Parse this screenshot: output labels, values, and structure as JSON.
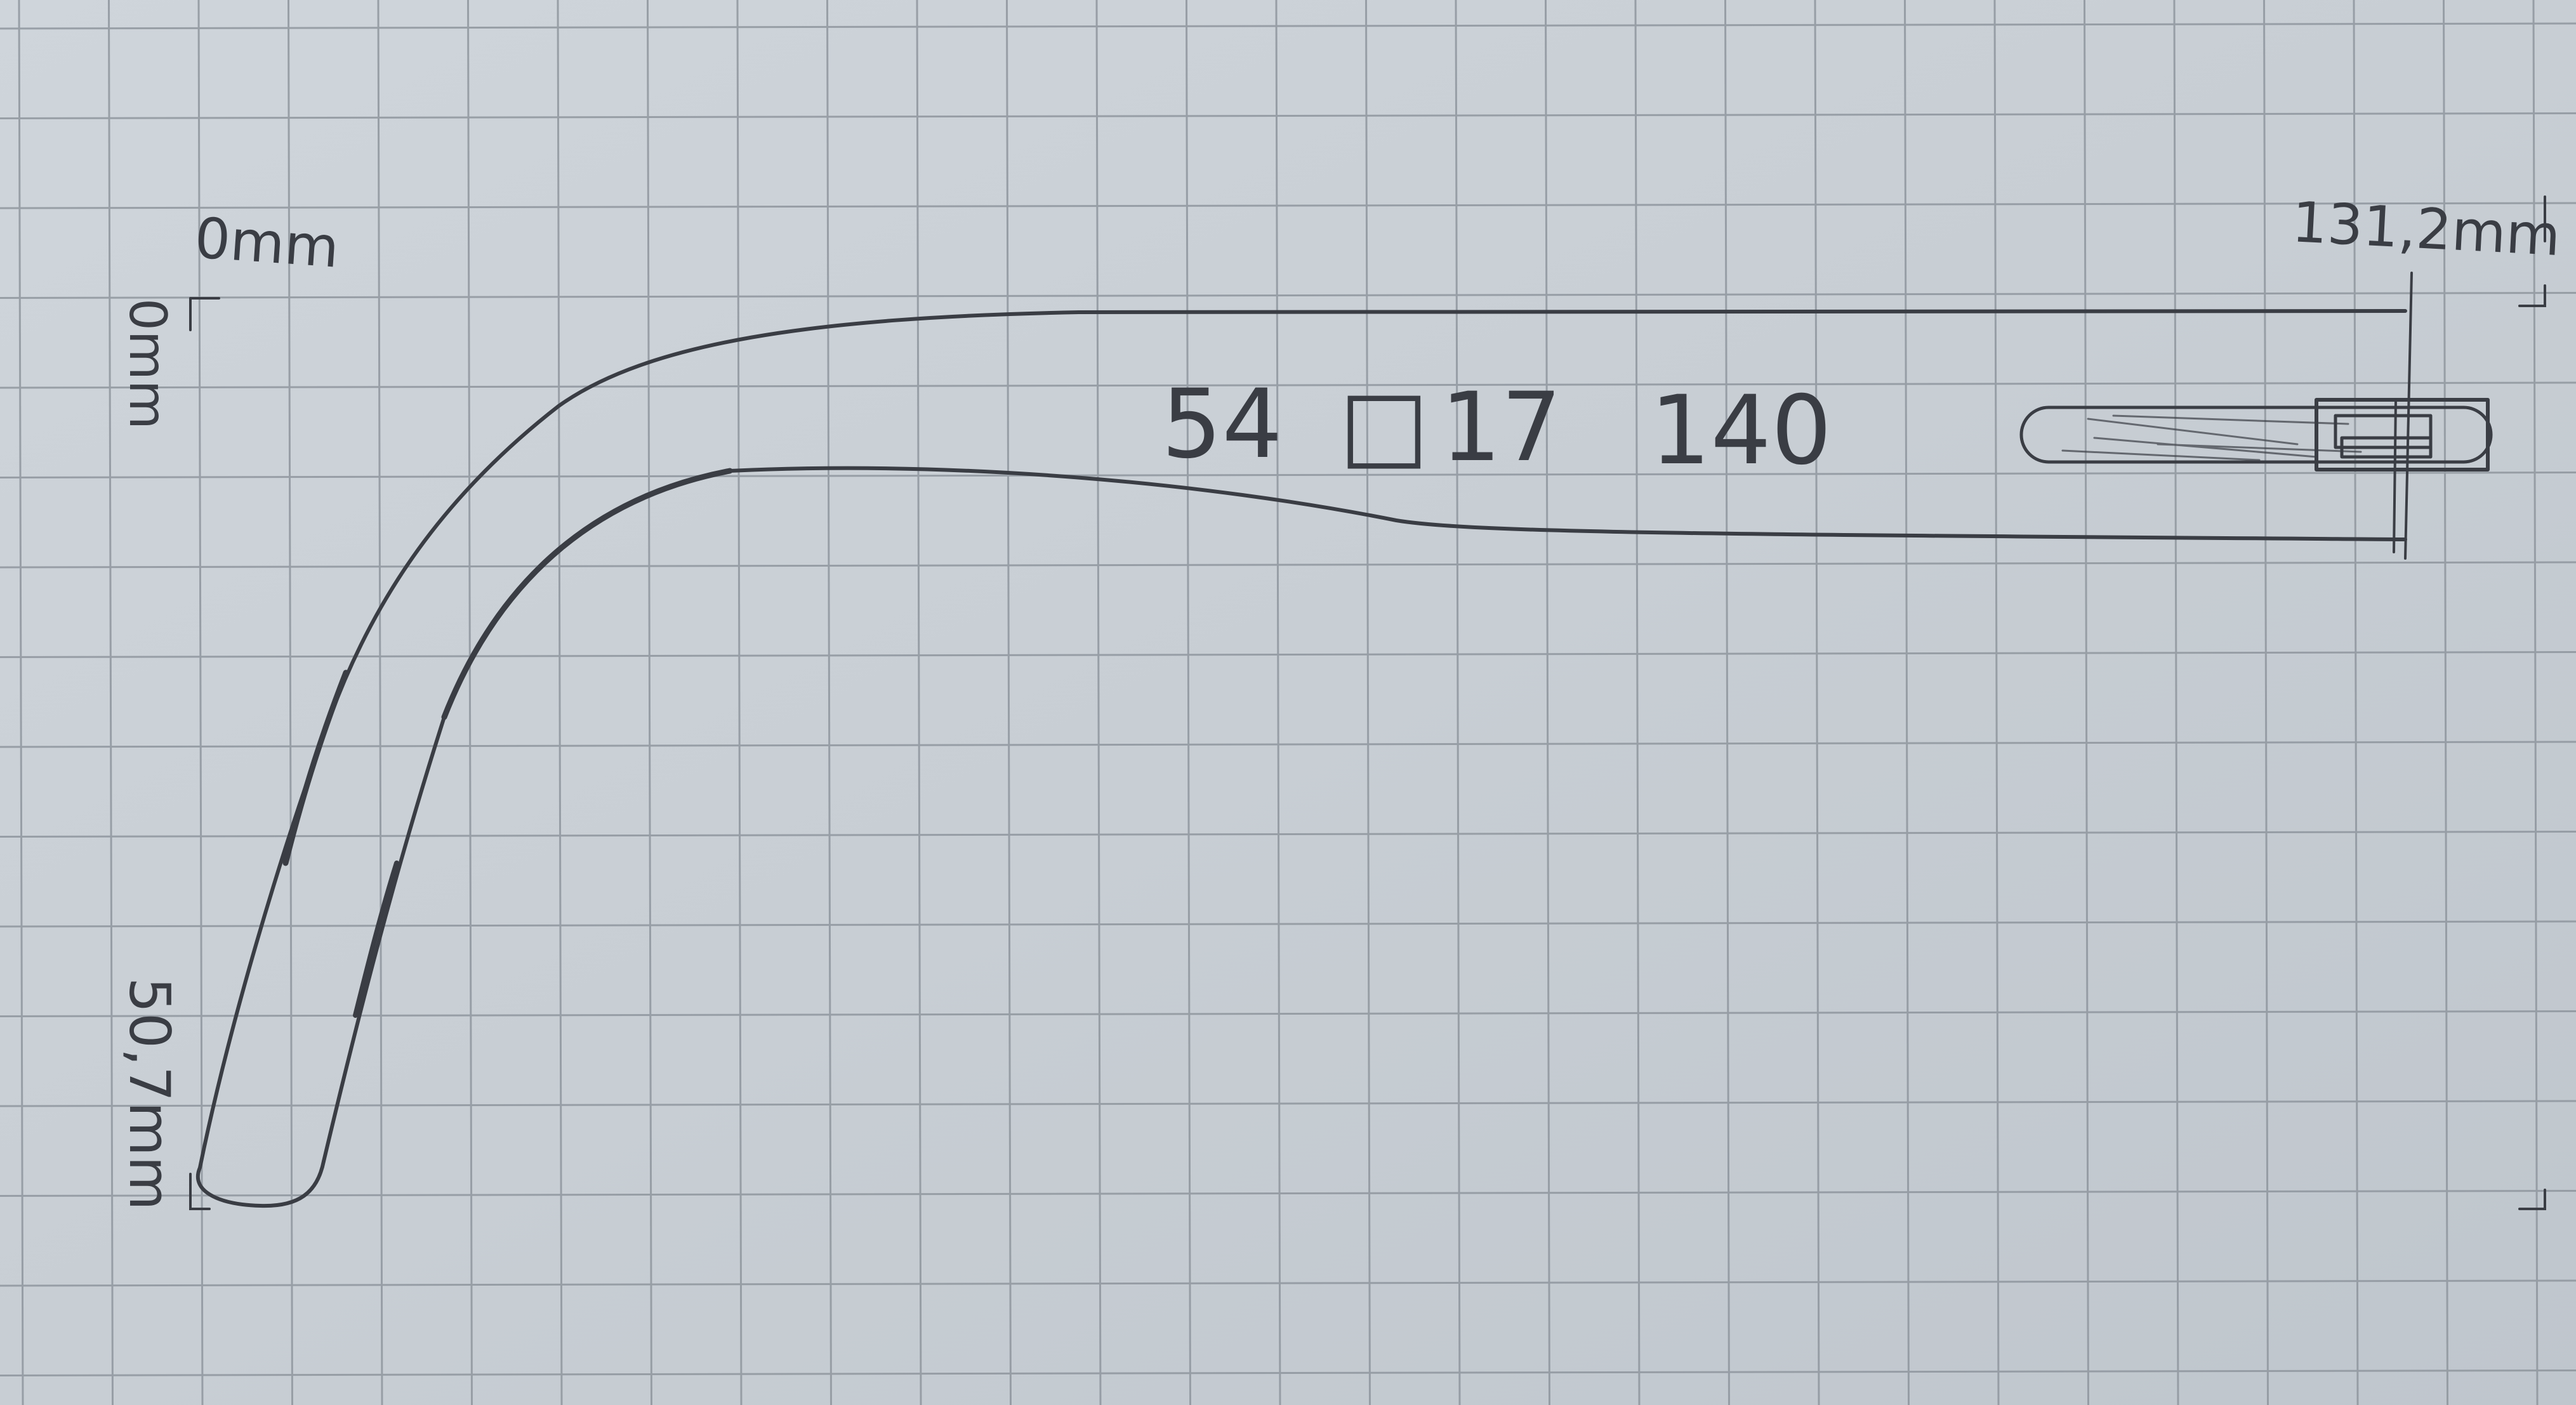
{
  "sketch": {
    "x_origin_label": "0mm",
    "y_origin_label": "0mm",
    "x_end_label": "131,2mm",
    "y_end_label": "50,7mm",
    "size_marking": {
      "lens_width": "54",
      "bridge_symbol": "□",
      "bridge_width": "17",
      "temple_length": "140"
    }
  },
  "colors": {
    "paper": "#c9cfd5",
    "grid_line": "#8f969e",
    "pencil": "#3a3d44"
  }
}
